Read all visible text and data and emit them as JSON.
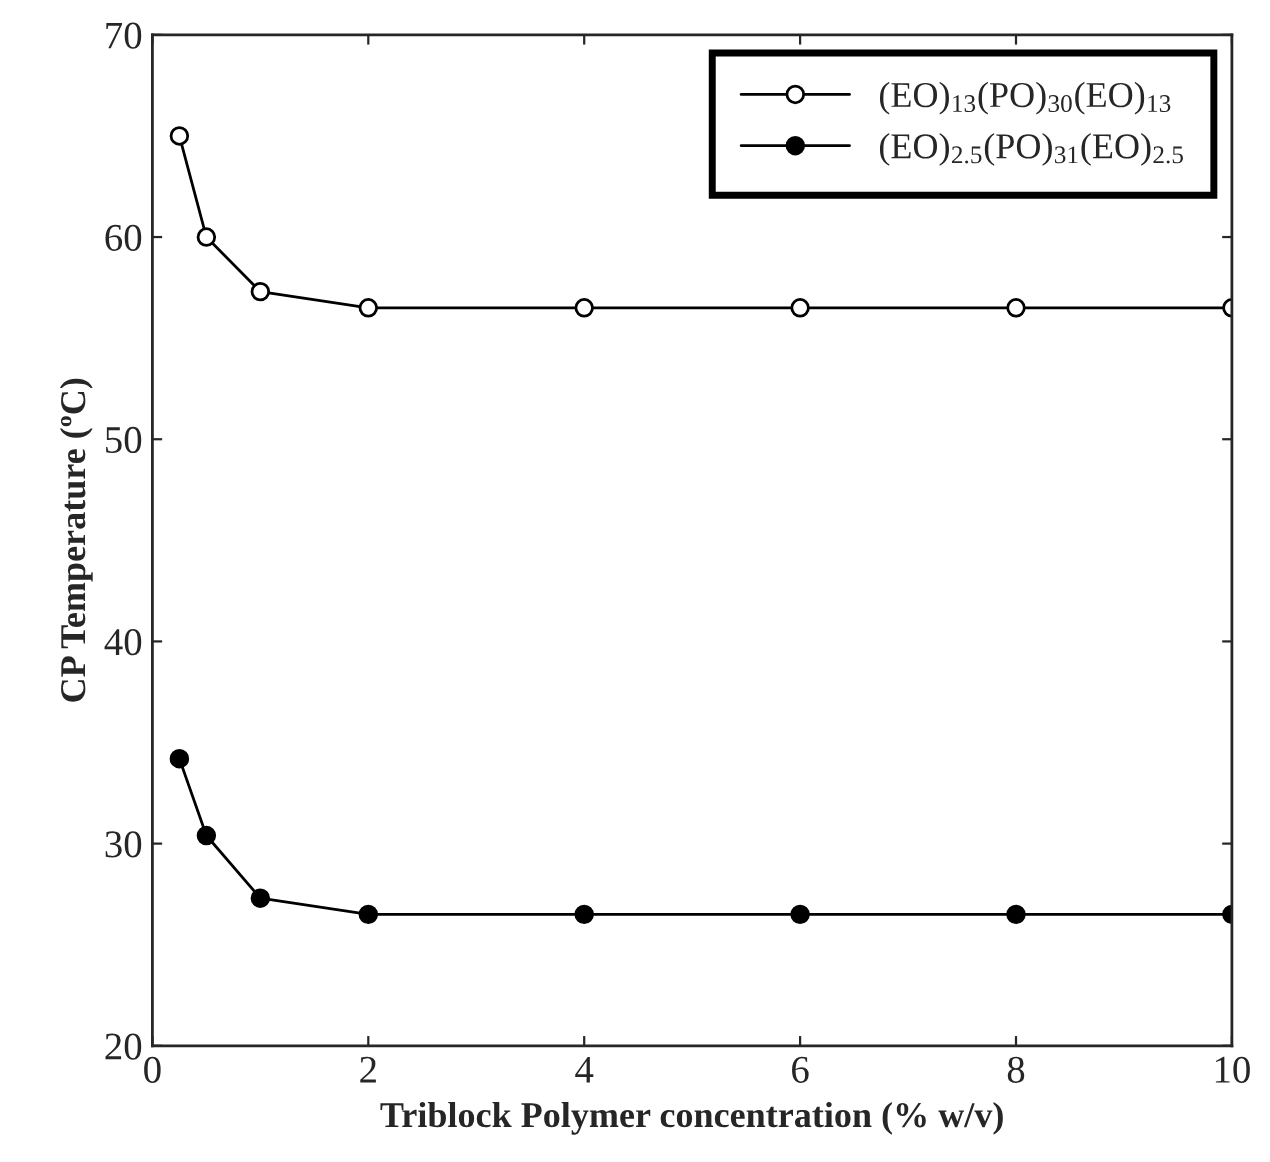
{
  "chart_data": {
    "type": "line",
    "xlabel": "Triblock Polymer concentration (% w/v)",
    "ylabel": "CP Temperature (ºC)",
    "x": [
      0.25,
      0.5,
      1,
      2,
      4,
      6,
      8,
      10
    ],
    "series": [
      {
        "name": "(EO)$_{13}$(PO)$_{30}$(EO)$_{13}$",
        "color": "#000000",
        "marker": "circle",
        "values": [
          65,
          60,
          57.3,
          56.5,
          56.5,
          56.5,
          56.5,
          56.5
        ]
      },
      {
        "name": "(EO)$_{2.5}$(PO)$_{31}$(EO)$_{2.5}$",
        "color": "#000000",
        "marker": "circle",
        "values": [
          34.2,
          30.4,
          27.3,
          26.5,
          26.5,
          26.5,
          26.5,
          26.5
        ]
      }
    ],
    "xlim": [
      0,
      10
    ],
    "xticks": [
      0,
      2,
      4,
      6,
      8,
      10
    ],
    "ylim": [
      20,
      70
    ],
    "yticks": [
      20,
      30,
      40,
      50,
      60,
      70
    ],
    "grid": false,
    "legend": "top right",
    "line_style": "solid"
  }
}
